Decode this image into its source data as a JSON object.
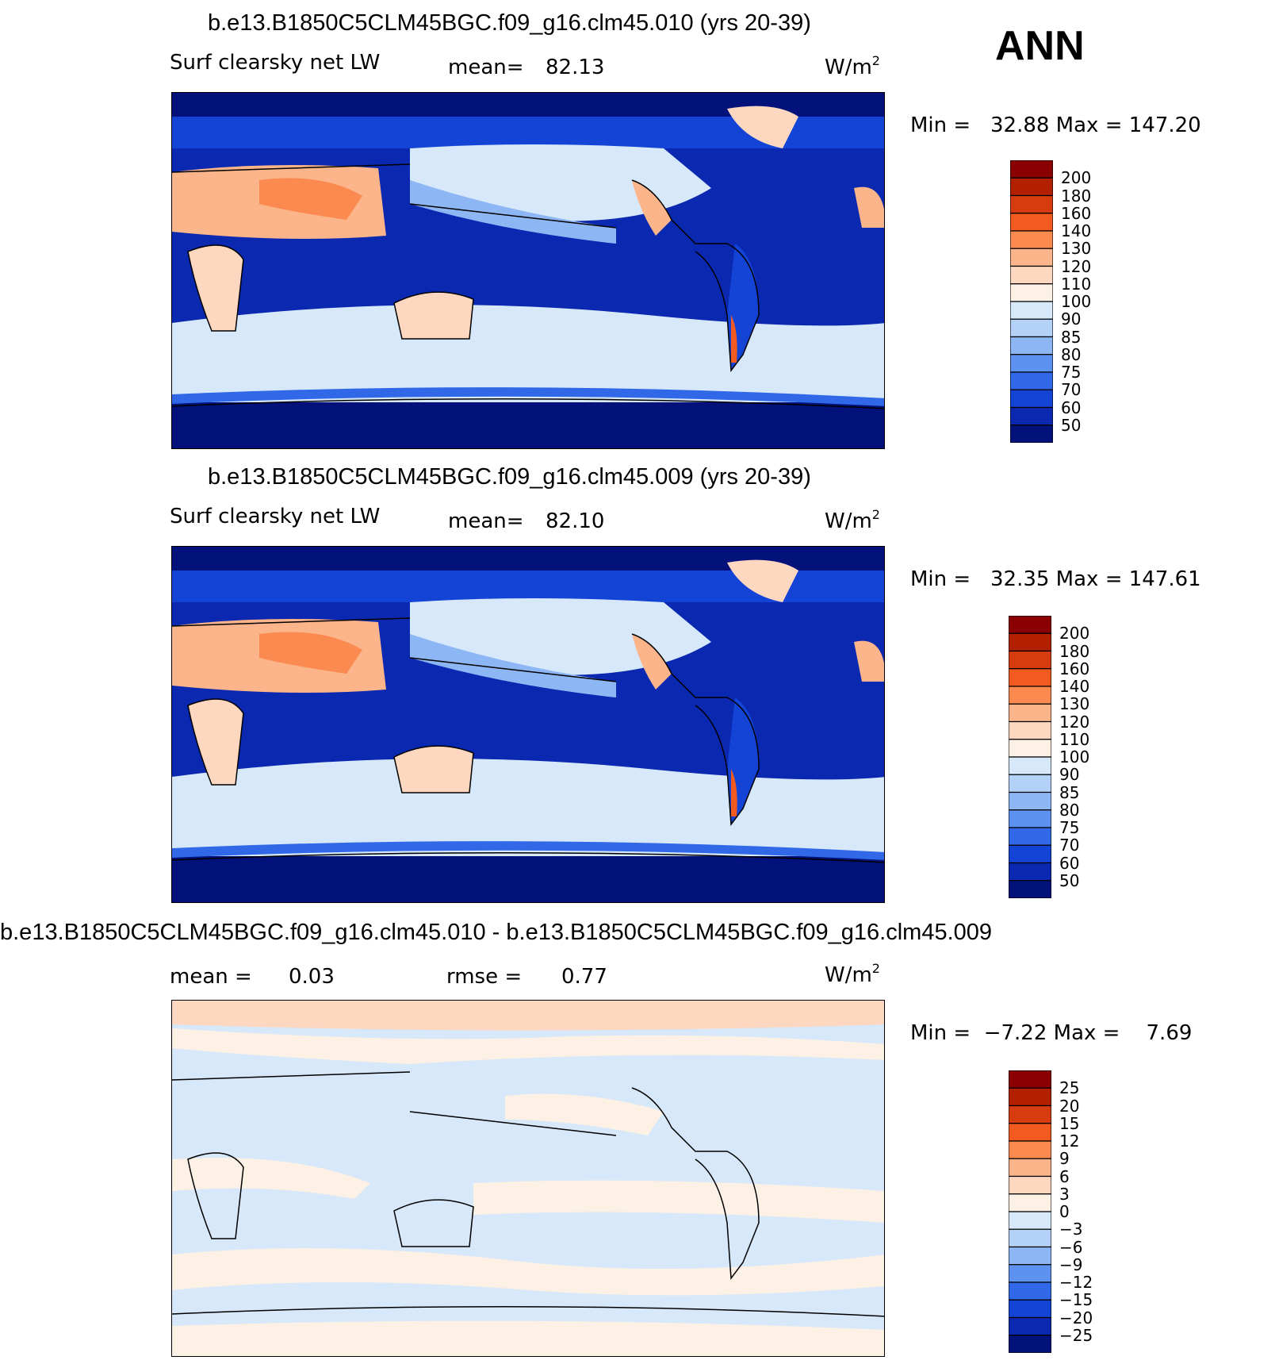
{
  "season": "ANN",
  "units": "W/m",
  "units_exp": "2",
  "panels": [
    {
      "title": "b.e13.B1850C5CLM45BGC.f09_g16.clm45.010 (yrs 20-39)",
      "left_label": "Surf clearsky net LW",
      "stat1_label": "mean=",
      "stat1_value": "82.13",
      "stat2_label": "",
      "stat2_value": "",
      "minmax": "Min =   32.88 Max = 147.20"
    },
    {
      "title": "b.e13.B1850C5CLM45BGC.f09_g16.clm45.009 (yrs 20-39)",
      "left_label": "Surf clearsky net LW",
      "stat1_label": "mean=",
      "stat1_value": "82.10",
      "stat2_label": "",
      "stat2_value": "",
      "minmax": "Min =   32.35 Max = 147.61"
    },
    {
      "title": "b.e13.B1850C5CLM45BGC.f09_g16.clm45.010 - b.e13.B1850C5CLM45BGC.f09_g16.clm45.009",
      "left_label": "",
      "stat1_label": "mean =",
      "stat1_value": "0.03",
      "stat2_label": "rmse =",
      "stat2_value": "0.77",
      "minmax": "Min =  −7.22 Max =    7.69"
    }
  ],
  "colorbars": [
    {
      "levels": [
        "200",
        "180",
        "160",
        "140",
        "130",
        "120",
        "110",
        "100",
        "90",
        "85",
        "80",
        "75",
        "70",
        "60",
        "50"
      ],
      "colors": [
        "#8b0000",
        "#b22000",
        "#d63c10",
        "#f25a20",
        "#fb8a50",
        "#fcb48a",
        "#fdd7c0",
        "#fdf0e4",
        "#d6e8fa",
        "#b4d2f7",
        "#8cb6f4",
        "#5e92f0",
        "#3068e8",
        "#1444d6",
        "#0a28b0",
        "#02127a"
      ]
    },
    {
      "levels": [
        "200",
        "180",
        "160",
        "140",
        "130",
        "120",
        "110",
        "100",
        "90",
        "85",
        "80",
        "75",
        "70",
        "60",
        "50"
      ],
      "colors": [
        "#8b0000",
        "#b22000",
        "#d63c10",
        "#f25a20",
        "#fb8a50",
        "#fcb48a",
        "#fdd7c0",
        "#fdf0e4",
        "#d6e8fa",
        "#b4d2f7",
        "#8cb6f4",
        "#5e92f0",
        "#3068e8",
        "#1444d6",
        "#0a28b0",
        "#02127a"
      ]
    },
    {
      "levels": [
        "25",
        "20",
        "15",
        "12",
        "9",
        "6",
        "3",
        "0",
        "−3",
        "−6",
        "−9",
        "−12",
        "−15",
        "−20",
        "−25"
      ],
      "colors": [
        "#8b0000",
        "#b22000",
        "#d63c10",
        "#f25a20",
        "#fb8a50",
        "#fcb48a",
        "#fdd7c0",
        "#fdf0e4",
        "#d6e8fa",
        "#b4d2f7",
        "#8cb6f4",
        "#5e92f0",
        "#3068e8",
        "#1444d6",
        "#0a28b0",
        "#02127a"
      ]
    }
  ],
  "chart_data": [
    {
      "type": "heatmap",
      "title": "b.e13.B1850C5CLM45BGC.f09_g16.clm45.010 (yrs 20-39)",
      "variable": "Surf clearsky net LW",
      "units": "W/m2",
      "mean": 82.13,
      "min": 32.88,
      "max": 147.2,
      "contour_levels": [
        50,
        60,
        70,
        75,
        80,
        85,
        90,
        100,
        110,
        120,
        130,
        140,
        160,
        180,
        200
      ]
    },
    {
      "type": "heatmap",
      "title": "b.e13.B1850C5CLM45BGC.f09_g16.clm45.009 (yrs 20-39)",
      "variable": "Surf clearsky net LW",
      "units": "W/m2",
      "mean": 82.1,
      "min": 32.35,
      "max": 147.61,
      "contour_levels": [
        50,
        60,
        70,
        75,
        80,
        85,
        90,
        100,
        110,
        120,
        130,
        140,
        160,
        180,
        200
      ]
    },
    {
      "type": "heatmap",
      "title": "b.e13.B1850C5CLM45BGC.f09_g16.clm45.010 - b.e13.B1850C5CLM45BGC.f09_g16.clm45.009",
      "units": "W/m2",
      "mean": 0.03,
      "rmse": 0.77,
      "min": -7.22,
      "max": 7.69,
      "contour_levels": [
        -25,
        -20,
        -15,
        -12,
        -9,
        -6,
        -3,
        0,
        3,
        6,
        9,
        12,
        15,
        20,
        25
      ]
    }
  ]
}
